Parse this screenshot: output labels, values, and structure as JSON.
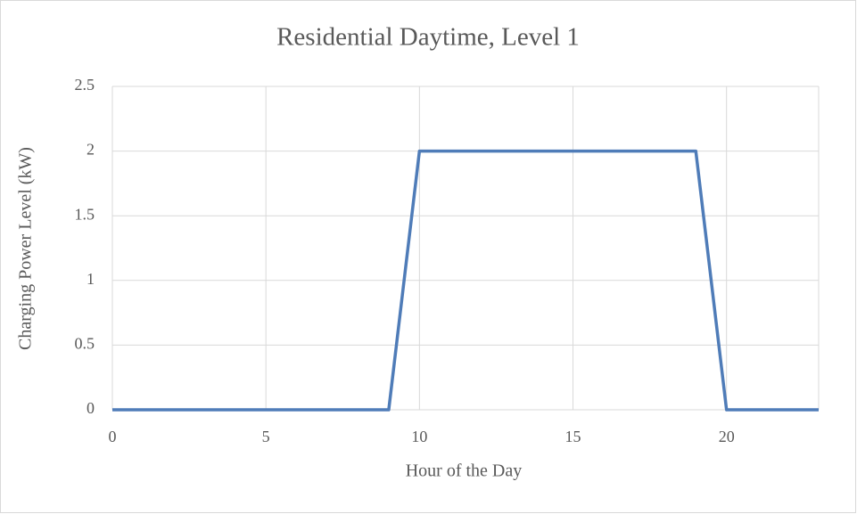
{
  "chart_data": {
    "type": "line",
    "title": "Residential Daytime, Level 1",
    "x_label": "Hour of the Day",
    "y_label": "Charging Power Level (kW)",
    "x": [
      0,
      1,
      2,
      3,
      4,
      5,
      6,
      7,
      8,
      9,
      10,
      11,
      12,
      13,
      14,
      15,
      16,
      17,
      18,
      19,
      20,
      21,
      22,
      23
    ],
    "values": [
      0,
      0,
      0,
      0,
      0,
      0,
      0,
      0,
      0,
      0,
      2,
      2,
      2,
      2,
      2,
      2,
      2,
      2,
      2,
      2,
      0,
      0,
      0,
      0
    ],
    "color": "#4f7cb8",
    "xlim": [
      0,
      23
    ],
    "xticks": [
      0,
      5,
      10,
      15,
      20
    ],
    "ylim": [
      0,
      2.5
    ],
    "yticks": [
      0,
      0.5,
      1,
      1.5,
      2,
      2.5
    ],
    "grid": true
  }
}
